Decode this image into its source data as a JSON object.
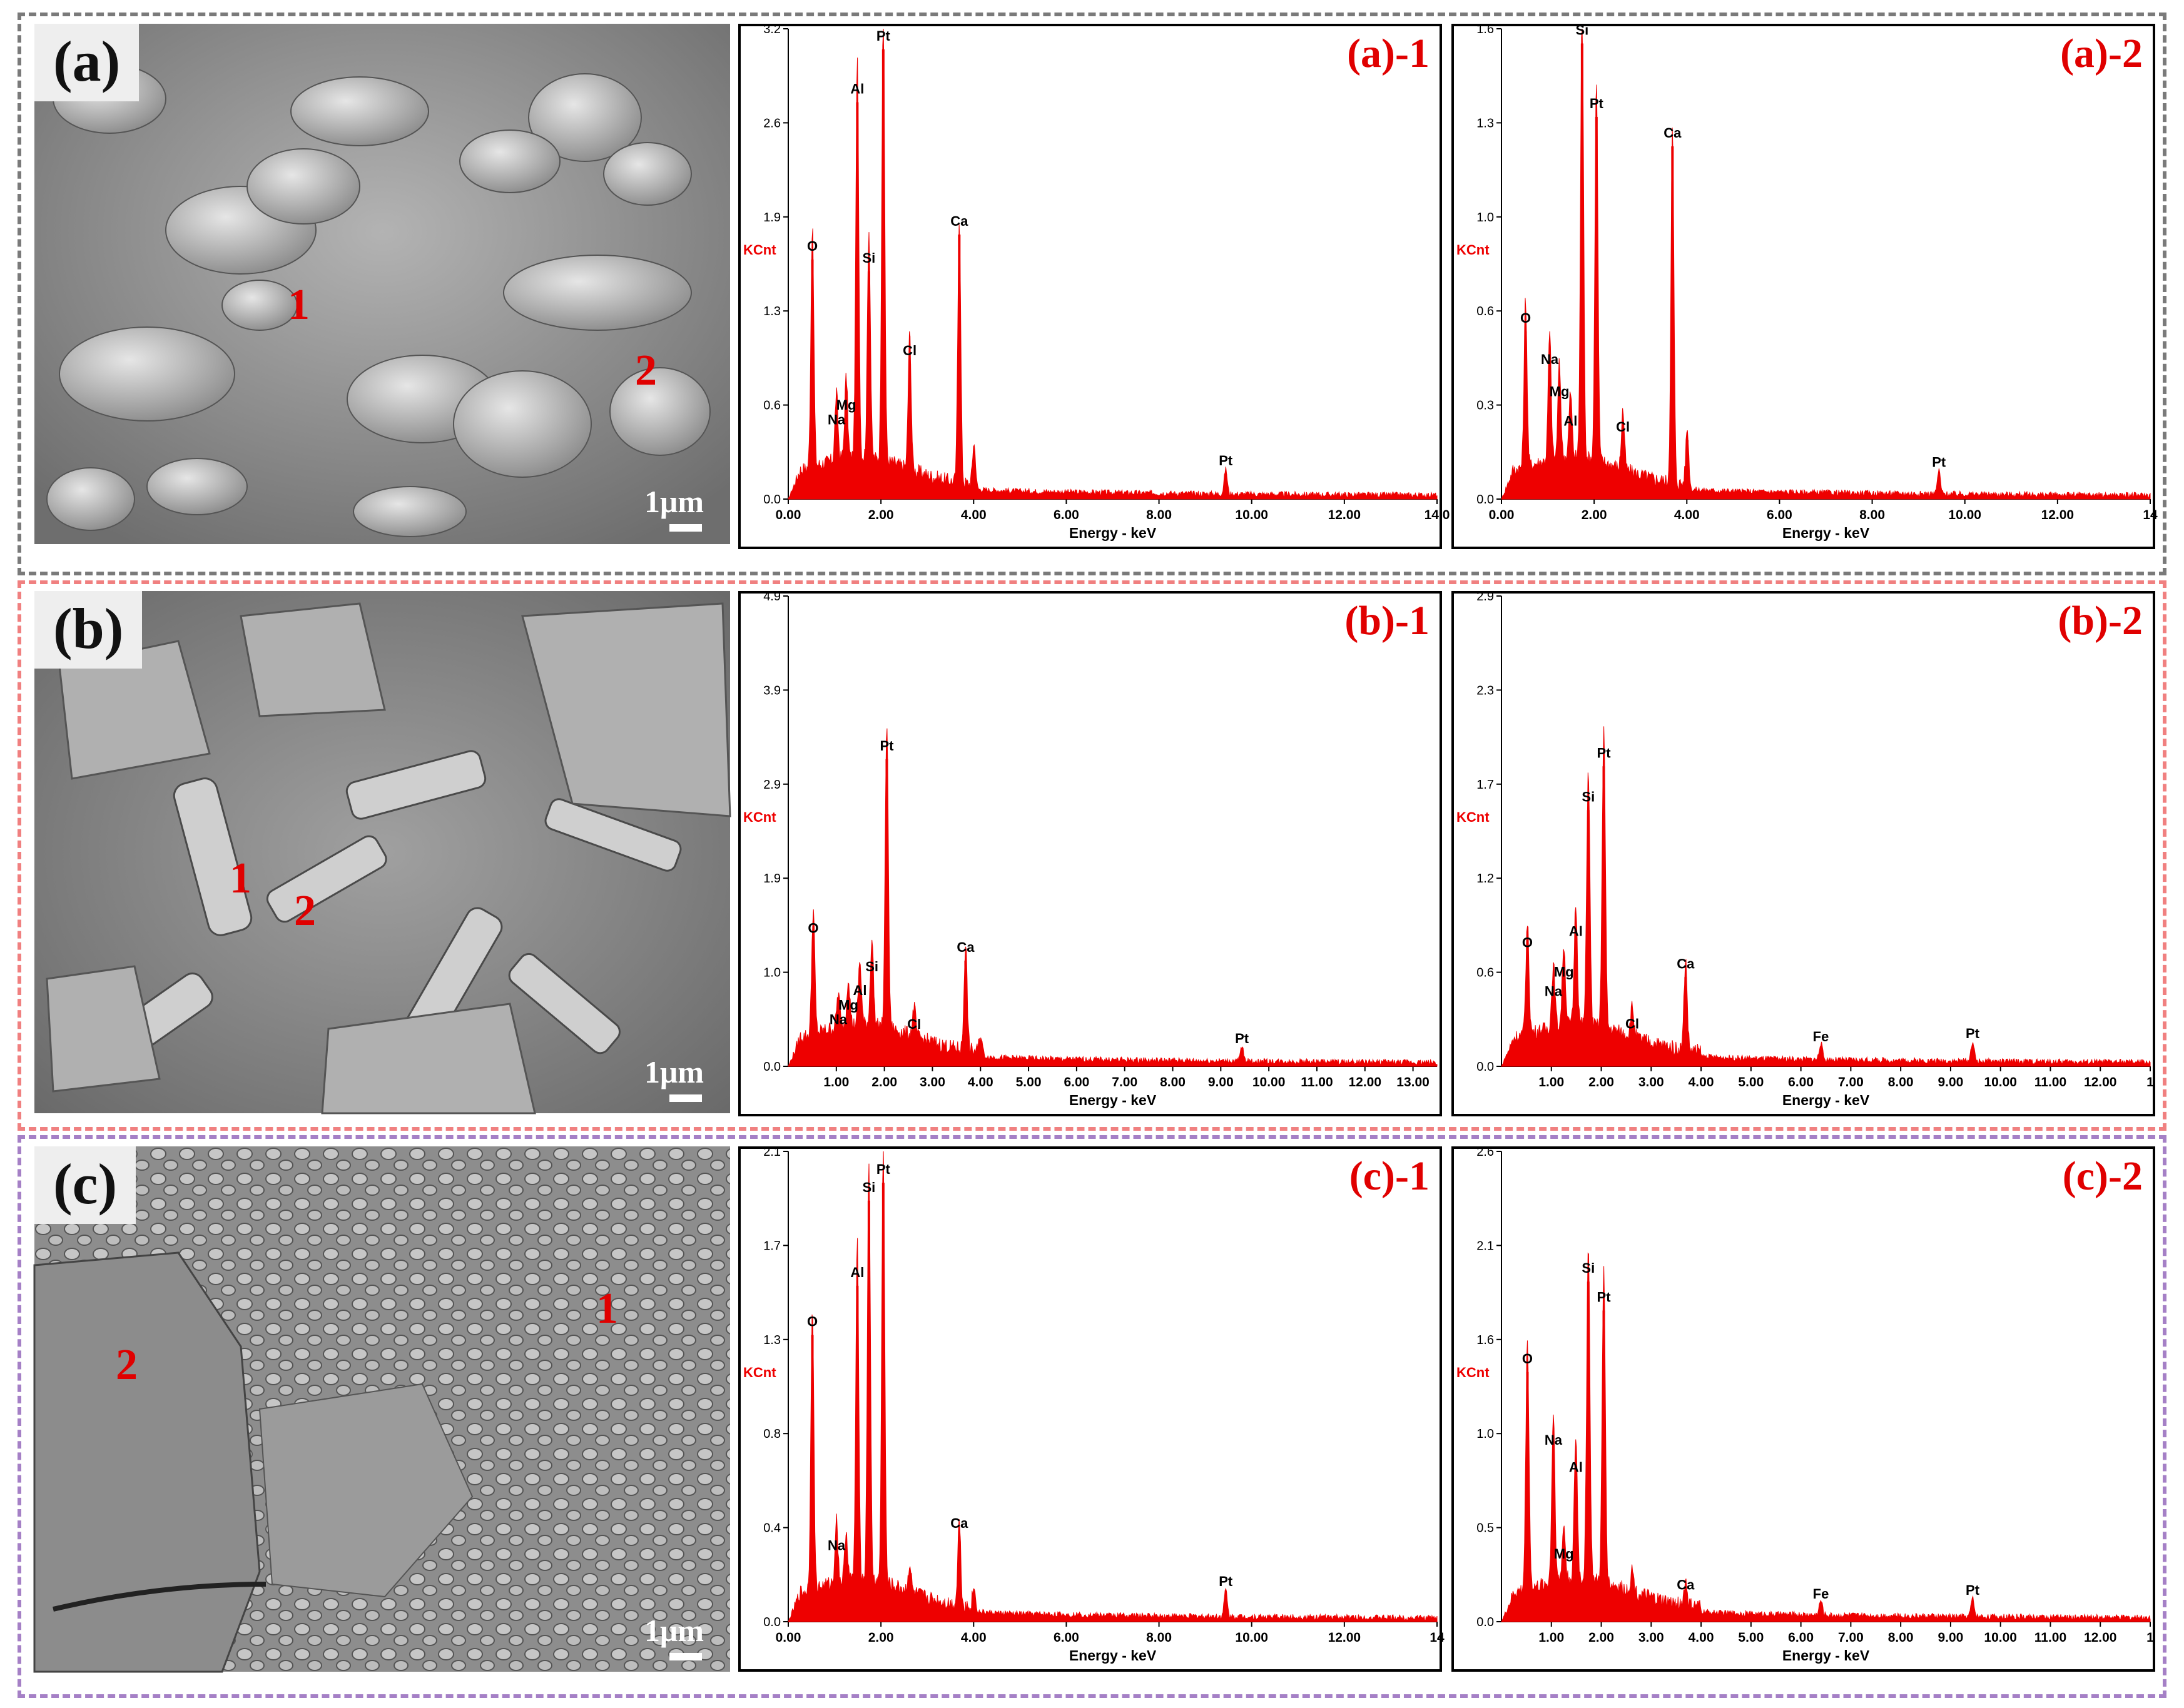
{
  "colors": {
    "spectrum": "#ee0000",
    "frame_a": "#7a7a7a",
    "frame_b": "#f08080",
    "frame_c": "#a580c6"
  },
  "rows": [
    {
      "label": "(a)",
      "scale_text": "1μm",
      "points": [
        "1",
        "2"
      ]
    },
    {
      "label": "(b)",
      "scale_text": "1μm",
      "points": [
        "1",
        "2"
      ]
    },
    {
      "label": "(c)",
      "scale_text": "1μm",
      "points": [
        "1",
        "2"
      ]
    }
  ],
  "chart_data": [
    {
      "type": "line",
      "title": "(a)-1",
      "xlabel": "Energy - keV",
      "ylabel": "KCnt",
      "xlim": [
        0,
        14
      ],
      "ylim": [
        0,
        3.2
      ],
      "xticks": [
        "0.00",
        "2.00",
        "4.00",
        "6.00",
        "8.00",
        "10.00",
        "12.00",
        "14.0"
      ],
      "xtick_values": [
        0,
        2,
        4,
        6,
        8,
        10,
        12,
        14
      ],
      "yticks": [
        "0.0",
        "0.6",
        "1.3",
        "1.9",
        "2.6",
        "3.2"
      ],
      "ytick_values": [
        0,
        0.64,
        1.28,
        1.92,
        2.56,
        3.2
      ],
      "peaks": [
        {
          "x": 0.52,
          "y": 1.63
        },
        {
          "x": 1.04,
          "y": 0.45
        },
        {
          "x": 1.25,
          "y": 0.55
        },
        {
          "x": 1.49,
          "y": 2.7
        },
        {
          "x": 1.74,
          "y": 1.55
        },
        {
          "x": 2.05,
          "y": 3.06
        },
        {
          "x": 2.62,
          "y": 0.92
        },
        {
          "x": 3.69,
          "y": 1.8
        },
        {
          "x": 4.01,
          "y": 0.3
        },
        {
          "x": 9.44,
          "y": 0.17
        }
      ],
      "peak_labels": [
        {
          "text": "O",
          "x": 0.52,
          "y": 1.63
        },
        {
          "text": "Na",
          "x": 1.04,
          "y": 0.45
        },
        {
          "text": "Mg",
          "x": 1.25,
          "y": 0.55
        },
        {
          "text": "Al",
          "x": 1.49,
          "y": 2.7
        },
        {
          "text": "Si",
          "x": 1.74,
          "y": 1.55
        },
        {
          "text": "Pt",
          "x": 2.05,
          "y": 3.06
        },
        {
          "text": "Cl",
          "x": 2.62,
          "y": 0.92
        },
        {
          "text": "Ca",
          "x": 3.69,
          "y": 1.8
        },
        {
          "text": "Pt",
          "x": 9.44,
          "y": 0.17
        }
      ]
    },
    {
      "type": "line",
      "title": "(a)-2",
      "xlabel": "Energy - keV",
      "ylabel": "KCnt",
      "xlim": [
        0,
        14
      ],
      "ylim": [
        0,
        1.6
      ],
      "xticks": [
        "0.00",
        "2.00",
        "4.00",
        "6.00",
        "8.00",
        "10.00",
        "12.00",
        "14"
      ],
      "xtick_values": [
        0,
        2,
        4,
        6,
        8,
        10,
        12,
        14
      ],
      "yticks": [
        "0.0",
        "0.3",
        "0.6",
        "1.0",
        "1.3",
        "1.6"
      ],
      "ytick_values": [
        0,
        0.32,
        0.64,
        0.96,
        1.28,
        1.6
      ],
      "peaks": [
        {
          "x": 0.52,
          "y": 0.57
        },
        {
          "x": 1.04,
          "y": 0.43
        },
        {
          "x": 1.25,
          "y": 0.32
        },
        {
          "x": 1.49,
          "y": 0.22
        },
        {
          "x": 1.74,
          "y": 1.55
        },
        {
          "x": 2.05,
          "y": 1.3
        },
        {
          "x": 2.62,
          "y": 0.2
        },
        {
          "x": 3.69,
          "y": 1.2
        },
        {
          "x": 4.01,
          "y": 0.2
        },
        {
          "x": 9.44,
          "y": 0.08
        }
      ],
      "peak_labels": [
        {
          "text": "O",
          "x": 0.52,
          "y": 0.57
        },
        {
          "text": "Na",
          "x": 1.04,
          "y": 0.43
        },
        {
          "text": "Mg",
          "x": 1.25,
          "y": 0.32
        },
        {
          "text": "Al",
          "x": 1.49,
          "y": 0.22
        },
        {
          "text": "Si",
          "x": 1.74,
          "y": 1.55
        },
        {
          "text": "Pt",
          "x": 2.05,
          "y": 1.3
        },
        {
          "text": "Cl",
          "x": 2.62,
          "y": 0.2
        },
        {
          "text": "Ca",
          "x": 3.69,
          "y": 1.2
        },
        {
          "text": "Pt",
          "x": 9.44,
          "y": 0.08
        }
      ]
    },
    {
      "type": "line",
      "title": "(b)-1",
      "xlabel": "Energy - keV",
      "ylabel": "KCnt",
      "xlim": [
        0,
        13.5
      ],
      "ylim": [
        0,
        4.9
      ],
      "xticks": [
        "1.00",
        "2.00",
        "3.00",
        "4.00",
        "5.00",
        "6.00",
        "7.00",
        "8.00",
        "9.00",
        "10.00",
        "11.00",
        "12.00",
        "13.00"
      ],
      "xtick_values": [
        1,
        2,
        3,
        4,
        5,
        6,
        7,
        8,
        9,
        10,
        11,
        12,
        13
      ],
      "yticks": [
        "0.0",
        "1.0",
        "1.9",
        "2.9",
        "3.9",
        "4.9"
      ],
      "ytick_values": [
        0,
        0.98,
        1.96,
        2.94,
        3.92,
        4.9
      ],
      "peaks": [
        {
          "x": 0.52,
          "y": 1.3
        },
        {
          "x": 1.04,
          "y": 0.35
        },
        {
          "x": 1.25,
          "y": 0.5
        },
        {
          "x": 1.49,
          "y": 0.65
        },
        {
          "x": 1.74,
          "y": 0.9
        },
        {
          "x": 2.05,
          "y": 3.2
        },
        {
          "x": 2.62,
          "y": 0.3
        },
        {
          "x": 3.69,
          "y": 1.1
        },
        {
          "x": 4.01,
          "y": 0.2
        },
        {
          "x": 9.44,
          "y": 0.15
        }
      ],
      "peak_labels": [
        {
          "text": "O",
          "x": 0.52,
          "y": 1.3
        },
        {
          "text": "Na",
          "x": 1.04,
          "y": 0.35
        },
        {
          "text": "Mg",
          "x": 1.25,
          "y": 0.5
        },
        {
          "text": "Al",
          "x": 1.49,
          "y": 0.65
        },
        {
          "text": "Si",
          "x": 1.74,
          "y": 0.9
        },
        {
          "text": "Pt",
          "x": 2.05,
          "y": 3.2
        },
        {
          "text": "Cl",
          "x": 2.62,
          "y": 0.3
        },
        {
          "text": "Ca",
          "x": 3.69,
          "y": 1.1
        },
        {
          "text": "Pt",
          "x": 9.44,
          "y": 0.15
        }
      ]
    },
    {
      "type": "line",
      "title": "(b)-2",
      "xlabel": "Energy - keV",
      "ylabel": "KCnt",
      "xlim": [
        0,
        13
      ],
      "ylim": [
        0,
        2.9
      ],
      "xticks": [
        "1.00",
        "2.00",
        "3.00",
        "4.00",
        "5.00",
        "6.00",
        "7.00",
        "8.00",
        "9.00",
        "10.00",
        "11.00",
        "12.00",
        "1"
      ],
      "xtick_values": [
        1,
        2,
        3,
        4,
        5,
        6,
        7,
        8,
        9,
        10,
        11,
        12,
        13
      ],
      "yticks": [
        "0.0",
        "0.6",
        "1.2",
        "1.7",
        "2.3",
        "2.9"
      ],
      "ytick_values": [
        0,
        0.58,
        1.16,
        1.74,
        2.32,
        2.9
      ],
      "peaks": [
        {
          "x": 0.52,
          "y": 0.68
        },
        {
          "x": 1.04,
          "y": 0.38
        },
        {
          "x": 1.25,
          "y": 0.5
        },
        {
          "x": 1.49,
          "y": 0.75
        },
        {
          "x": 1.74,
          "y": 1.58
        },
        {
          "x": 2.05,
          "y": 1.85
        },
        {
          "x": 2.62,
          "y": 0.18
        },
        {
          "x": 3.69,
          "y": 0.55
        },
        {
          "x": 6.4,
          "y": 0.1
        },
        {
          "x": 9.44,
          "y": 0.12
        }
      ],
      "peak_labels": [
        {
          "text": "O",
          "x": 0.52,
          "y": 0.68
        },
        {
          "text": "Na",
          "x": 1.04,
          "y": 0.38
        },
        {
          "text": "Mg",
          "x": 1.25,
          "y": 0.5
        },
        {
          "text": "Al",
          "x": 1.49,
          "y": 0.75
        },
        {
          "text": "Si",
          "x": 1.74,
          "y": 1.58
        },
        {
          "text": "Pt",
          "x": 2.05,
          "y": 1.85
        },
        {
          "text": "Cl",
          "x": 2.62,
          "y": 0.18
        },
        {
          "text": "Ca",
          "x": 3.69,
          "y": 0.55
        },
        {
          "text": "Fe",
          "x": 6.4,
          "y": 0.1
        },
        {
          "text": "Pt",
          "x": 9.44,
          "y": 0.12
        }
      ]
    },
    {
      "type": "line",
      "title": "(c)-1",
      "xlabel": "Energy - keV",
      "ylabel": "KCnt",
      "xlim": [
        0,
        14
      ],
      "ylim": [
        0,
        2.1
      ],
      "xticks": [
        "0.00",
        "2.00",
        "4.00",
        "6.00",
        "8.00",
        "10.00",
        "12.00",
        "14"
      ],
      "xtick_values": [
        0,
        2,
        4,
        6,
        8,
        10,
        12,
        14
      ],
      "yticks": [
        "0.0",
        "0.4",
        "0.8",
        "1.3",
        "1.7",
        "2.1"
      ],
      "ytick_values": [
        0,
        0.42,
        0.84,
        1.26,
        1.68,
        2.1
      ],
      "peaks": [
        {
          "x": 0.52,
          "y": 1.28
        },
        {
          "x": 1.04,
          "y": 0.28
        },
        {
          "x": 1.25,
          "y": 0.22
        },
        {
          "x": 1.49,
          "y": 1.5
        },
        {
          "x": 1.74,
          "y": 1.88
        },
        {
          "x": 2.05,
          "y": 1.96
        },
        {
          "x": 2.62,
          "y": 0.12
        },
        {
          "x": 3.69,
          "y": 0.38
        },
        {
          "x": 4.01,
          "y": 0.1
        },
        {
          "x": 9.44,
          "y": 0.12
        }
      ],
      "peak_labels": [
        {
          "text": "O",
          "x": 0.52,
          "y": 1.28
        },
        {
          "text": "Na",
          "x": 1.04,
          "y": 0.28
        },
        {
          "text": "Al",
          "x": 1.49,
          "y": 1.5
        },
        {
          "text": "Si",
          "x": 1.74,
          "y": 1.88
        },
        {
          "text": "Pt",
          "x": 2.05,
          "y": 1.96
        },
        {
          "text": "Ca",
          "x": 3.69,
          "y": 0.38
        },
        {
          "text": "Pt",
          "x": 9.44,
          "y": 0.12
        }
      ]
    },
    {
      "type": "line",
      "title": "(c)-2",
      "xlabel": "Energy - keV",
      "ylabel": "KCnt",
      "xlim": [
        0,
        13
      ],
      "ylim": [
        0,
        2.6
      ],
      "xticks": [
        "1.00",
        "2.00",
        "3.00",
        "4.00",
        "5.00",
        "6.00",
        "7.00",
        "8.00",
        "9.00",
        "10.00",
        "11.00",
        "12.00",
        "1"
      ],
      "xtick_values": [
        1,
        2,
        3,
        4,
        5,
        6,
        7,
        8,
        9,
        10,
        11,
        12,
        13
      ],
      "yticks": [
        "0.0",
        "0.5",
        "1.0",
        "1.6",
        "2.1",
        "2.6"
      ],
      "ytick_values": [
        0,
        0.52,
        1.04,
        1.56,
        2.08,
        2.6
      ],
      "peaks": [
        {
          "x": 0.52,
          "y": 1.38
        },
        {
          "x": 1.04,
          "y": 0.93
        },
        {
          "x": 1.25,
          "y": 0.3
        },
        {
          "x": 1.49,
          "y": 0.78
        },
        {
          "x": 1.74,
          "y": 1.88
        },
        {
          "x": 2.05,
          "y": 1.72
        },
        {
          "x": 2.62,
          "y": 0.12
        },
        {
          "x": 3.69,
          "y": 0.13
        },
        {
          "x": 6.4,
          "y": 0.08
        },
        {
          "x": 9.44,
          "y": 0.1
        }
      ],
      "peak_labels": [
        {
          "text": "O",
          "x": 0.52,
          "y": 1.38
        },
        {
          "text": "Na",
          "x": 1.04,
          "y": 0.93
        },
        {
          "text": "Mg",
          "x": 1.25,
          "y": 0.3
        },
        {
          "text": "Al",
          "x": 1.49,
          "y": 0.78
        },
        {
          "text": "Si",
          "x": 1.74,
          "y": 1.88
        },
        {
          "text": "Pt",
          "x": 2.05,
          "y": 1.72
        },
        {
          "text": "Ca",
          "x": 3.69,
          "y": 0.13
        },
        {
          "text": "Fe",
          "x": 6.4,
          "y": 0.08
        },
        {
          "text": "Pt",
          "x": 9.44,
          "y": 0.1
        }
      ]
    }
  ]
}
